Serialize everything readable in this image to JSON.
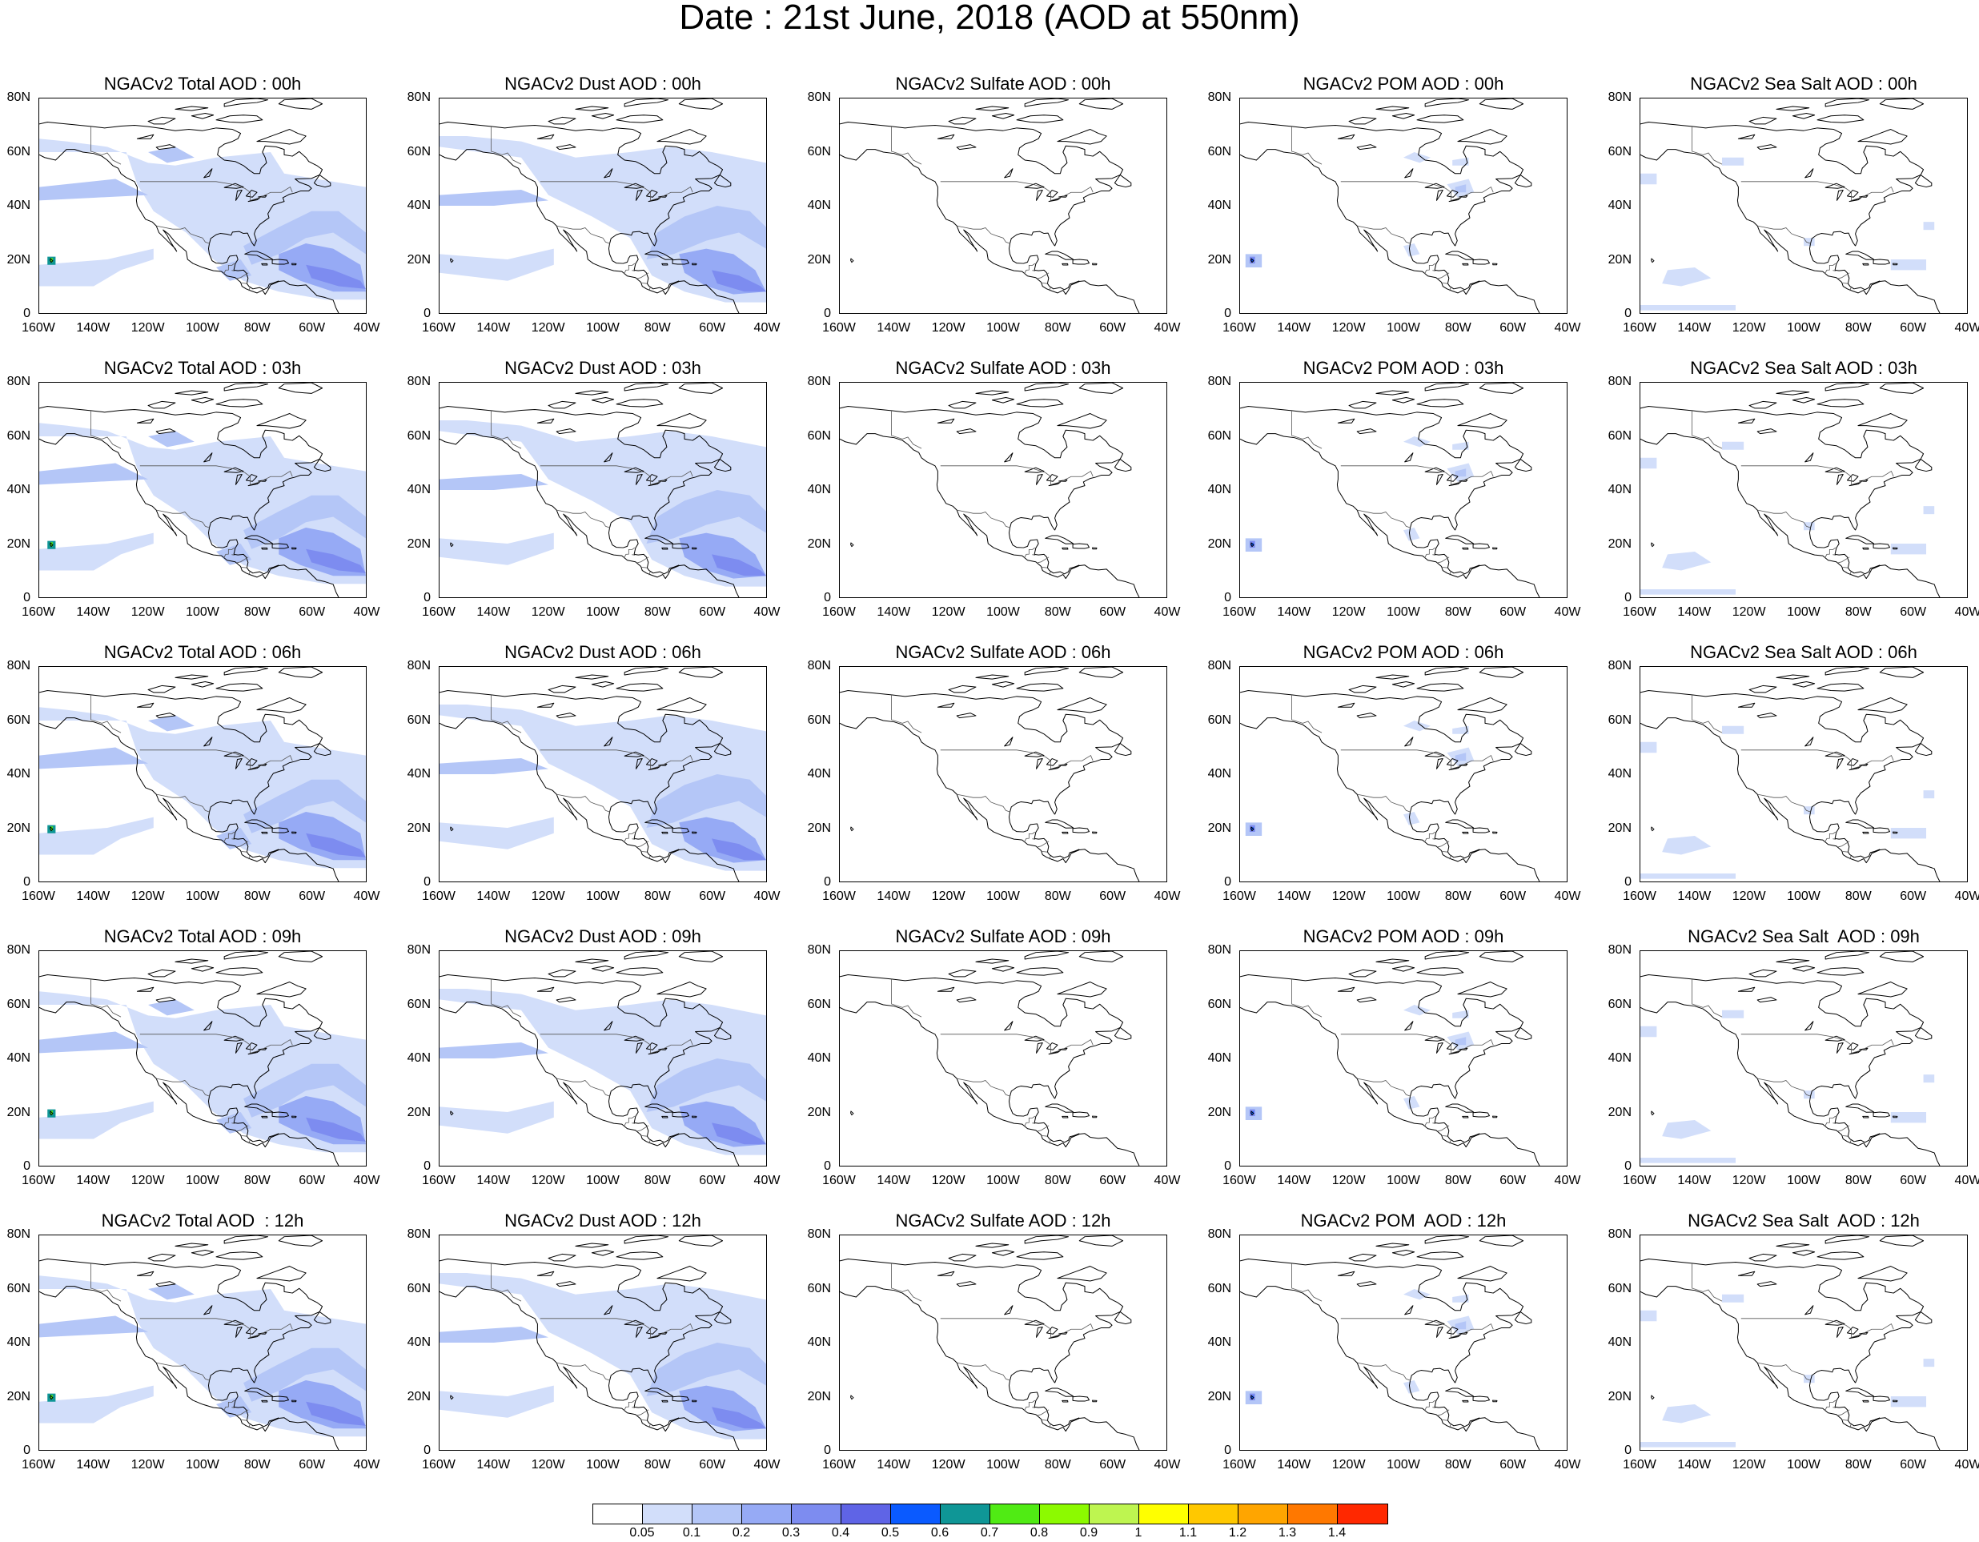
{
  "title": "Date : 21st June, 2018 (AOD at 550nm)",
  "latitude_labels": [
    "80N",
    "60N",
    "40N",
    "20N",
    "0"
  ],
  "longitude_labels": [
    "160W",
    "140W",
    "120W",
    "100W",
    "80W",
    "60W",
    "40W"
  ],
  "panels": [
    [
      {
        "title": "NGACv2 Total AOD : 00h",
        "species": "total"
      },
      {
        "title": "NGACv2 Dust AOD : 00h",
        "species": "dust"
      },
      {
        "title": "NGACv2 Sulfate AOD : 00h",
        "species": "sulfate"
      },
      {
        "title": "NGACv2 POM AOD : 00h",
        "species": "pom"
      },
      {
        "title": "NGACv2 Sea Salt AOD : 00h",
        "species": "seasalt"
      }
    ],
    [
      {
        "title": "NGACv2 Total AOD : 03h",
        "species": "total"
      },
      {
        "title": "NGACv2 Dust AOD : 03h",
        "species": "dust"
      },
      {
        "title": "NGACv2 Sulfate AOD : 03h",
        "species": "sulfate"
      },
      {
        "title": "NGACv2 POM AOD : 03h",
        "species": "pom"
      },
      {
        "title": "NGACv2 Sea Salt AOD : 03h",
        "species": "seasalt"
      }
    ],
    [
      {
        "title": "NGACv2 Total AOD : 06h",
        "species": "total"
      },
      {
        "title": "NGACv2 Dust AOD : 06h",
        "species": "dust"
      },
      {
        "title": "NGACv2 Sulfate AOD : 06h",
        "species": "sulfate"
      },
      {
        "title": "NGACv2 POM AOD : 06h",
        "species": "pom"
      },
      {
        "title": "NGACv2 Sea Salt AOD : 06h",
        "species": "seasalt"
      }
    ],
    [
      {
        "title": "NGACv2 Total AOD : 09h",
        "species": "total"
      },
      {
        "title": "NGACv2 Dust AOD : 09h",
        "species": "dust"
      },
      {
        "title": "NGACv2 Sulfate AOD : 09h",
        "species": "sulfate"
      },
      {
        "title": "NGACv2 POM AOD : 09h",
        "species": "pom"
      },
      {
        "title": "NGACv2 Sea Salt  AOD : 09h",
        "species": "seasalt"
      }
    ],
    [
      {
        "title": "NGACv2 Total AOD  : 12h",
        "species": "total"
      },
      {
        "title": "NGACv2 Dust AOD : 12h",
        "species": "dust"
      },
      {
        "title": "NGACv2 Sulfate AOD : 12h",
        "species": "sulfate"
      },
      {
        "title": "NGACv2 POM  AOD : 12h",
        "species": "pom"
      },
      {
        "title": "NGACv2 Sea Salt  AOD : 12h",
        "species": "seasalt"
      }
    ]
  ],
  "colorbar": {
    "colors": [
      "#ffffff",
      "#d2defa",
      "#b4c6f7",
      "#96aaf5",
      "#7d8cf0",
      "#5f64e6",
      "#0a5aff",
      "#0f9696",
      "#50eb14",
      "#8cfa00",
      "#bef550",
      "#ffff00",
      "#ffc800",
      "#ffa500",
      "#ff7800",
      "#ff2800"
    ],
    "labels": [
      "0.05",
      "0.1",
      "0.2",
      "0.3",
      "0.4",
      "0.5",
      "0.6",
      "0.7",
      "0.8",
      "0.9",
      "1",
      "1.1",
      "1.2",
      "1.3",
      "1.4"
    ]
  }
}
